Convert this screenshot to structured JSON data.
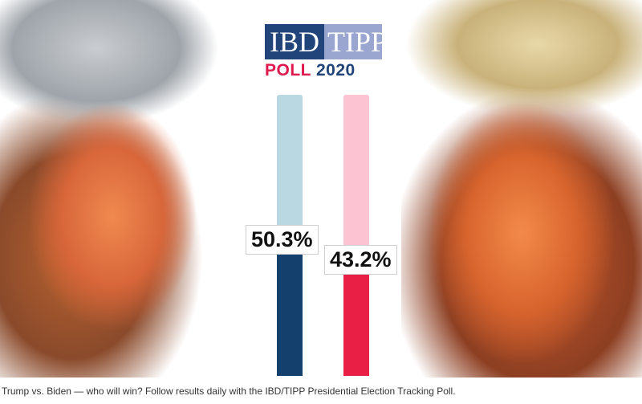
{
  "logo": {
    "ibd": "IBD",
    "tipp": "TIPP",
    "poll": "POLL",
    "year": "2020"
  },
  "chart_data": {
    "type": "bar",
    "categories": [
      "Biden",
      "Trump"
    ],
    "values": [
      50.3,
      43.2
    ],
    "value_labels": [
      "50.3%",
      "43.2%"
    ],
    "ylim": [
      0,
      100
    ],
    "colors": {
      "Biden": {
        "filled": "#14406e",
        "track": "#b9d8e2"
      },
      "Trump": {
        "filled": "#ea1f45",
        "track": "#fcc3d3"
      }
    },
    "grid": false
  },
  "caption": "Trump vs. Biden — who will win? Follow results daily with the IBD/TIPP Presidential Election Tracking Poll."
}
